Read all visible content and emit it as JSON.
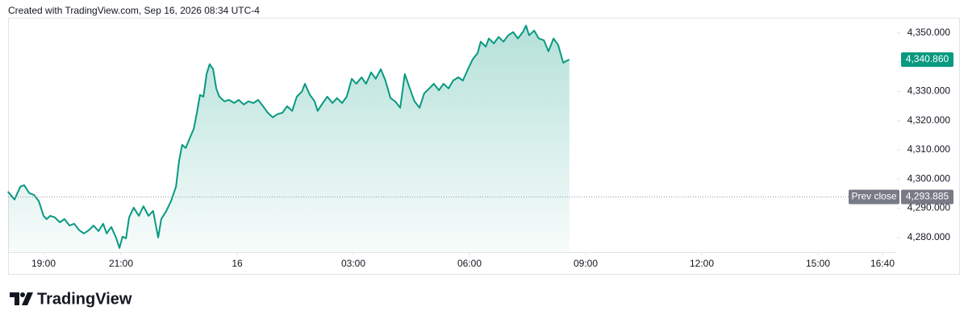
{
  "chart_data": {
    "type": "line",
    "header": "Created with TradingView.com, Sep 16, 2026 08:34 UTC-4",
    "brand": "TradingView",
    "color": "#089981",
    "x": [
      18.08,
      18.25,
      18.4,
      18.5,
      18.63,
      18.75,
      18.88,
      19.0,
      19.08,
      19.17,
      19.29,
      19.42,
      19.54,
      19.67,
      19.79,
      19.92,
      20.04,
      20.17,
      20.29,
      20.42,
      20.54,
      20.63,
      20.75,
      20.88,
      20.96,
      21.04,
      21.13,
      21.21,
      21.33,
      21.46,
      21.58,
      21.71,
      21.83,
      21.96,
      22.04,
      22.17,
      22.29,
      22.42,
      22.5,
      22.58,
      22.67,
      22.79,
      22.88,
      22.96,
      23.04,
      23.13,
      23.21,
      23.29,
      23.38,
      23.46,
      23.54,
      23.67,
      23.79,
      23.92,
      24.04,
      24.17,
      24.29,
      24.42,
      24.54,
      24.67,
      24.79,
      24.92,
      25.04,
      25.17,
      25.29,
      25.42,
      25.54,
      25.67,
      25.75,
      25.88,
      26.0,
      26.08,
      26.21,
      26.33,
      26.46,
      26.58,
      26.71,
      26.83,
      26.96,
      27.08,
      27.21,
      27.33,
      27.46,
      27.58,
      27.71,
      27.83,
      27.96,
      28.08,
      28.21,
      28.33,
      28.46,
      28.58,
      28.71,
      28.83,
      28.96,
      29.08,
      29.21,
      29.33,
      29.46,
      29.58,
      29.71,
      29.83,
      29.96,
      30.08,
      30.21,
      30.29,
      30.42,
      30.5,
      30.63,
      30.75,
      30.88,
      31.0,
      31.13,
      31.25,
      31.38,
      31.46,
      31.54,
      31.67,
      31.79,
      31.92,
      32.04,
      32.17,
      32.29,
      32.42,
      32.5,
      32.58
    ],
    "values": [
      4295.7,
      4293.0,
      4297.4,
      4297.9,
      4295.2,
      4294.6,
      4292.4,
      4287.4,
      4286.3,
      4287.4,
      4286.9,
      4285.2,
      4286.3,
      4284.1,
      4284.7,
      4282.5,
      4281.4,
      4282.5,
      4284.1,
      4282.2,
      4284.7,
      4281.4,
      4283.6,
      4279.7,
      4276.4,
      4280.3,
      4279.7,
      4286.9,
      4290.2,
      4287.4,
      4290.7,
      4287.4,
      4289.1,
      4280.0,
      4286.3,
      4289.1,
      4292.4,
      4297.4,
      4306.2,
      4311.7,
      4310.6,
      4314.4,
      4317.2,
      4322.7,
      4328.8,
      4328.2,
      4335.9,
      4339.3,
      4337.6,
      4331.0,
      4328.2,
      4326.6,
      4327.1,
      4326.0,
      4327.1,
      4325.5,
      4326.6,
      4326.0,
      4327.1,
      4324.9,
      4322.7,
      4321.1,
      4322.2,
      4322.7,
      4324.9,
      4323.3,
      4328.2,
      4329.9,
      4332.6,
      4328.8,
      4326.6,
      4323.3,
      4326.0,
      4328.2,
      4326.0,
      4327.7,
      4326.0,
      4328.2,
      4334.3,
      4332.6,
      4334.8,
      4332.6,
      4336.5,
      4334.3,
      4337.6,
      4333.7,
      4327.7,
      4326.6,
      4324.4,
      4335.9,
      4331.0,
      4326.6,
      4324.4,
      4329.3,
      4331.0,
      4332.6,
      4330.4,
      4332.6,
      4331.0,
      4333.7,
      4334.8,
      4333.7,
      4337.6,
      4340.9,
      4343.1,
      4347.0,
      4345.3,
      4348.1,
      4346.4,
      4348.6,
      4347.0,
      4349.2,
      4350.3,
      4348.1,
      4350.3,
      4352.5,
      4349.2,
      4350.8,
      4348.1,
      4347.5,
      4343.7,
      4348.1,
      4345.9,
      4339.8,
      4340.4,
      4340.86
    ],
    "last_value_label": "4,340.860",
    "prev_close": {
      "label": "Prev close",
      "value": 4293.885,
      "value_label": "4,293.885"
    },
    "xlim": [
      18.0833,
      41
    ],
    "ylim": [
      4275,
      4356.3
    ],
    "xticks": [
      {
        "value": 19,
        "label": "19:00"
      },
      {
        "value": 21,
        "label": "21:00"
      },
      {
        "value": 24,
        "label": "16"
      },
      {
        "value": 27,
        "label": "03:00"
      },
      {
        "value": 30,
        "label": "06:00"
      },
      {
        "value": 33,
        "label": "09:00"
      },
      {
        "value": 36,
        "label": "12:00"
      },
      {
        "value": 39,
        "label": "15:00"
      },
      {
        "value": 40.6667,
        "label": "16:40"
      }
    ],
    "yticks": [
      {
        "value": 4280,
        "label": "4,280.000"
      },
      {
        "value": 4290,
        "label": "4,290.000"
      },
      {
        "value": 4300,
        "label": "4,300.000"
      },
      {
        "value": 4310,
        "label": "4,310.000"
      },
      {
        "value": 4320,
        "label": "4,320.000"
      },
      {
        "value": 4330,
        "label": "4,330.000"
      },
      {
        "value": 4340,
        "label": "4,340.000"
      },
      {
        "value": 4350,
        "label": "4,350.000"
      }
    ]
  }
}
